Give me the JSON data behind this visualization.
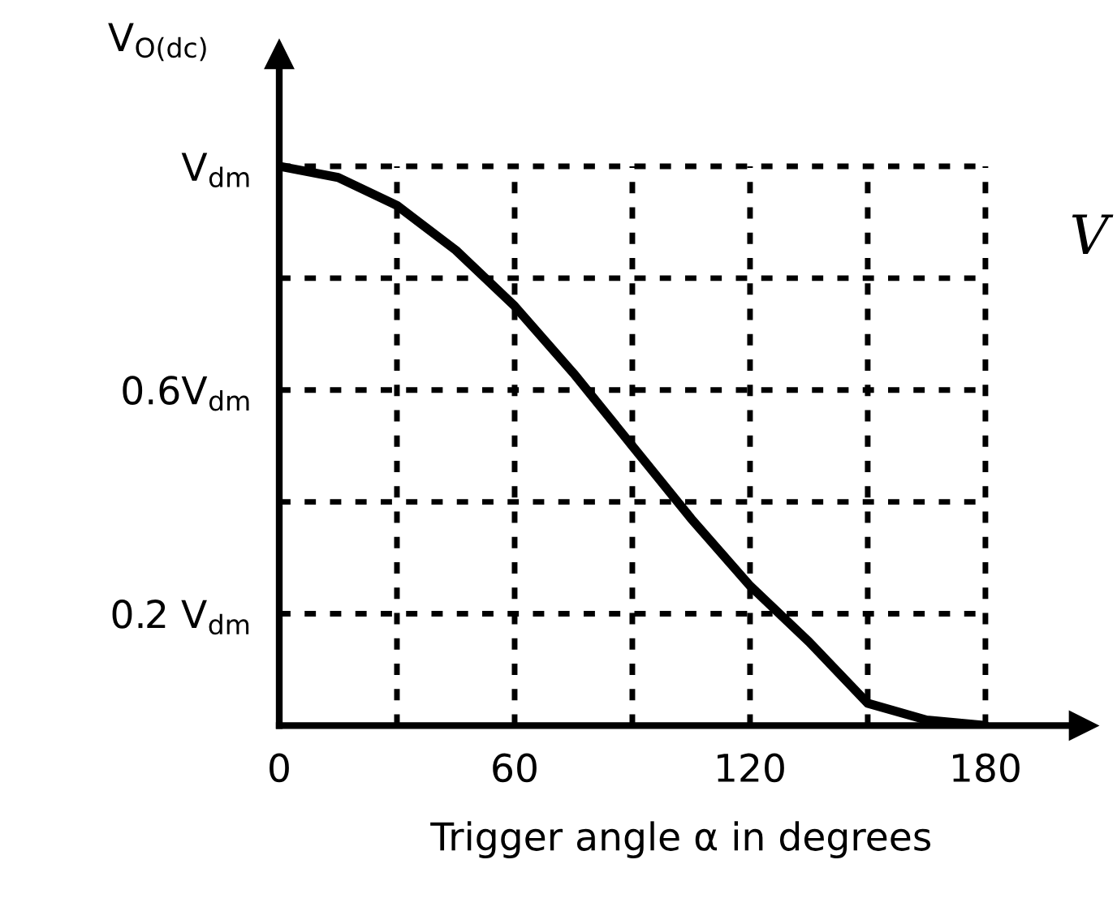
{
  "chart_data": {
    "type": "line",
    "xlabel": "Trigger angle α in degrees",
    "ylabel": "V$_{O(dc)}$",
    "x": [
      0,
      15,
      30,
      45,
      60,
      75,
      90,
      105,
      120,
      135,
      150,
      165,
      180
    ],
    "series": [
      {
        "color": "#000000",
        "values": [
          1,
          0.98,
          0.93,
          0.85,
          0.75,
          0.63,
          0.5,
          0.37,
          0.25,
          0.15,
          0.04,
          0.01,
          0
        ]
      }
    ],
    "xlim": [
      0,
      205
    ],
    "ylim": [
      0,
      1.2
    ],
    "xticks": [
      0,
      {
        "value": 30,
        "label": null
      },
      60,
      {
        "value": 90,
        "label": null
      },
      120,
      {
        "value": 150,
        "label": null
      },
      180
    ],
    "yticks": [
      {
        "value": 0.2,
        "label": "0.2 V$_{dm}$"
      },
      {
        "value": 0.4,
        "label": null
      },
      {
        "value": 0.6,
        "label": "0.6V$_{dm}$"
      },
      {
        "value": 0.8,
        "label": null
      },
      {
        "value": 1,
        "label": "V$_{dm}$"
      }
    ],
    "grid": true,
    "marker": "none",
    "line_style": "solid",
    "legend": false,
    "annotations": [
      "V"
    ]
  }
}
